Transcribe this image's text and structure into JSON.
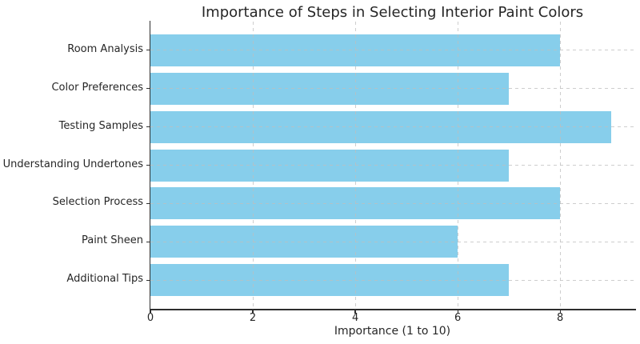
{
  "chart_data": {
    "type": "bar",
    "orientation": "horizontal",
    "title": "Importance of Steps in Selecting Interior Paint Colors",
    "categories": [
      "Room Analysis",
      "Color Preferences",
      "Testing Samples",
      "Understanding Undertones",
      "Selection Process",
      "Paint Sheen",
      "Additional Tips"
    ],
    "values": [
      8,
      7,
      9,
      7,
      8,
      6,
      7
    ],
    "xlabel": "Importance (1 to 10)",
    "ylabel": "",
    "xticks": [
      0,
      2,
      4,
      6,
      8
    ],
    "xlim": [
      0,
      9.45
    ],
    "grid": "both, dashed, drawn over bars",
    "legend": "none",
    "colors": {
      "bar": "#87CEEB",
      "grid": "#cccccc",
      "axis": "#2e2e2e",
      "text": "#262626",
      "background": "#ffffff"
    }
  }
}
